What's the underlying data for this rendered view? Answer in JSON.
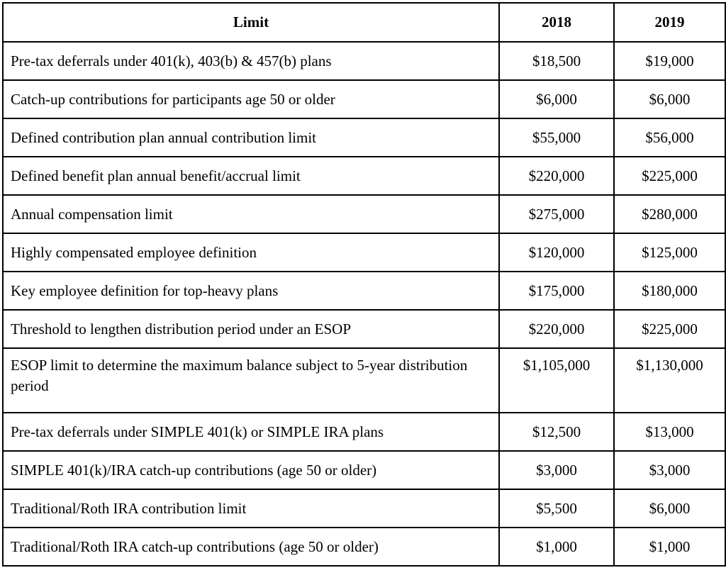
{
  "table": {
    "headers": {
      "limit": "Limit",
      "y2018": "2018",
      "y2019": "2019"
    },
    "rows": [
      {
        "limit": "Pre-tax deferrals under 401(k), 403(b) & 457(b) plans",
        "y2018": "$18,500",
        "y2019": "$19,000"
      },
      {
        "limit": "Catch-up contributions for participants age 50 or older",
        "y2018": "$6,000",
        "y2019": "$6,000"
      },
      {
        "limit": "Defined contribution plan annual contribution limit",
        "y2018": "$55,000",
        "y2019": "$56,000"
      },
      {
        "limit": "Defined benefit plan annual benefit/accrual limit",
        "y2018": "$220,000",
        "y2019": "$225,000"
      },
      {
        "limit": "Annual compensation limit",
        "y2018": "$275,000",
        "y2019": "$280,000"
      },
      {
        "limit": "Highly compensated employee definition",
        "y2018": "$120,000",
        "y2019": "$125,000"
      },
      {
        "limit": "Key employee definition for top-heavy plans",
        "y2018": "$175,000",
        "y2019": "$180,000"
      },
      {
        "limit": "Threshold to lengthen distribution period under an ESOP",
        "y2018": "$220,000",
        "y2019": "$225,000"
      },
      {
        "limit": "ESOP limit to determine the maximum balance subject to 5-year distribution period",
        "y2018": "$1,105,000",
        "y2019": "$1,130,000"
      },
      {
        "limit": "Pre-tax deferrals under SIMPLE 401(k) or SIMPLE IRA plans",
        "y2018": "$12,500",
        "y2019": "$13,000"
      },
      {
        "limit": "SIMPLE 401(k)/IRA catch-up contributions (age 50 or older)",
        "y2018": "$3,000",
        "y2019": "$3,000"
      },
      {
        "limit": "Traditional/Roth IRA contribution limit",
        "y2018": "$5,500",
        "y2019": "$6,000"
      },
      {
        "limit": "Traditional/Roth IRA catch-up contributions (age 50 or older)",
        "y2018": "$1,000",
        "y2019": "$1,000"
      }
    ]
  }
}
